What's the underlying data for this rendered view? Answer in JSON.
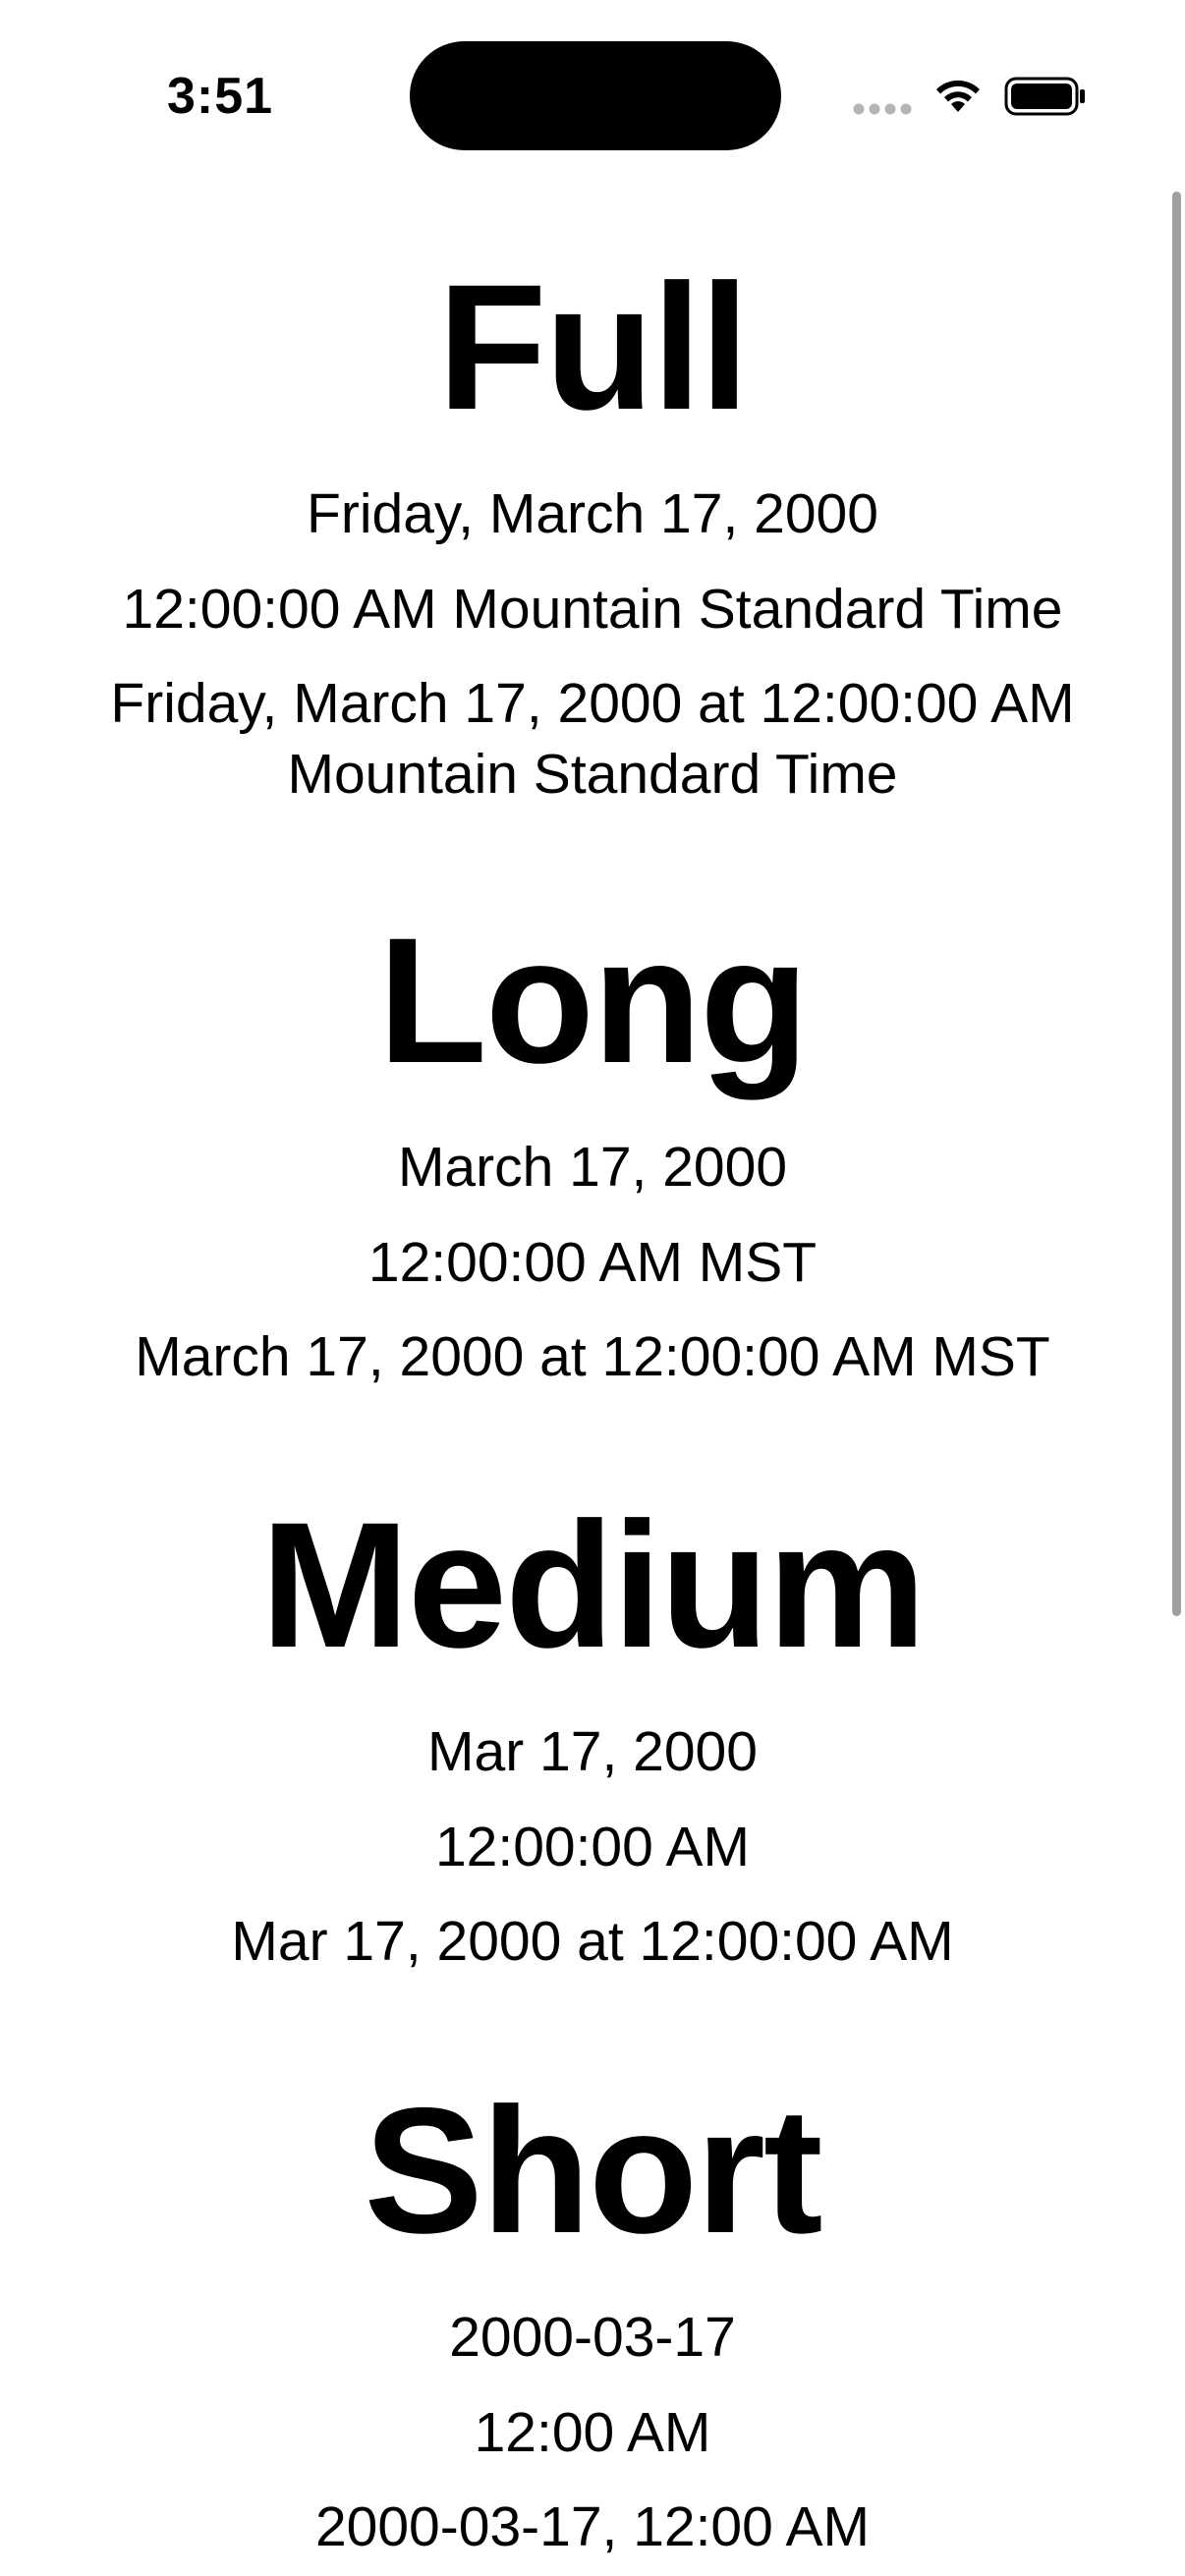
{
  "status_bar": {
    "time": "3:51"
  },
  "icons": {
    "signal": "signal-dots-icon",
    "wifi": "wifi-icon",
    "battery": "battery-icon"
  },
  "sections": [
    {
      "title": "Full",
      "date": "Friday, March 17, 2000",
      "time": "12:00:00 AM Mountain Standard Time",
      "datetime": "Friday, March 17, 2000 at 12:00:00 AM Mountain Standard Time"
    },
    {
      "title": "Long",
      "date": "March 17, 2000",
      "time": "12:00:00 AM MST",
      "datetime": "March 17, 2000 at 12:00:00 AM MST"
    },
    {
      "title": "Medium",
      "date": "Mar 17, 2000",
      "time": "12:00:00 AM",
      "datetime": "Mar 17, 2000 at 12:00:00 AM"
    },
    {
      "title": "Short",
      "date": "2000-03-17",
      "time": "12:00 AM",
      "datetime": "2000-03-17, 12:00 AM"
    }
  ]
}
